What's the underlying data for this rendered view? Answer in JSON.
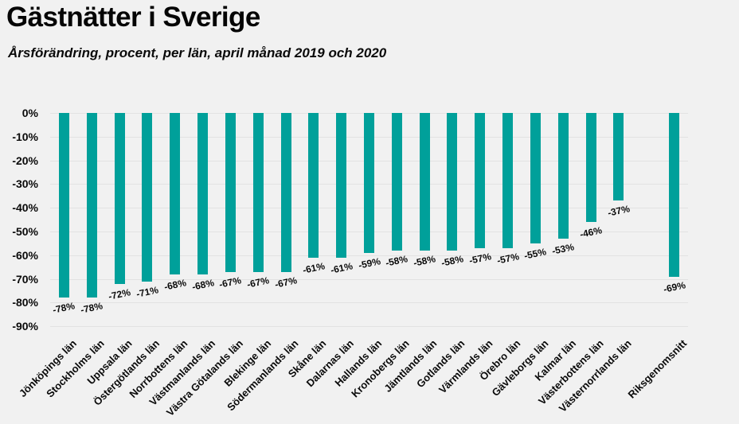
{
  "header": {
    "title": "Gästnätter i Sverige",
    "subtitle": "Årsförändring, procent, per län, april månad 2019 och 2020"
  },
  "chart_data": {
    "type": "bar",
    "title": "Gästnätter i Sverige",
    "subtitle": "Årsförändring, procent, per län, april månad 2019 och 2020",
    "unit": "percent",
    "categories": [
      "Jönköpings län",
      "Stockholms län",
      "Uppsala län",
      "Östergötlands län",
      "Norrbottens län",
      "Västmanlands län",
      "Västra Götalands län",
      "Blekinge län",
      "Södermanlands län",
      "Skåne län",
      "Dalarnas län",
      "Hallands län",
      "Kronobergs län",
      "Jämtlands län",
      "Gotlands län",
      "Värmlands län",
      "Örebro län",
      "Gävleborgs län",
      "Kalmar län",
      "Västerbottens län",
      "Västernorrlands län",
      "Riksgenomsnitt"
    ],
    "values": [
      -78,
      -78,
      -72,
      -71,
      -68,
      -68,
      -67,
      -67,
      -67,
      -61,
      -61,
      -59,
      -58,
      -58,
      -58,
      -57,
      -57,
      -55,
      -53,
      -46,
      -37,
      -69
    ],
    "value_labels": [
      "-78%",
      "-78%",
      "-72%",
      "-71%",
      "-68%",
      "-68%",
      "-67%",
      "-67%",
      "-67%",
      "-61%",
      "-61%",
      "-59%",
      "-58%",
      "-58%",
      "-58%",
      "-57%",
      "-57%",
      "-55%",
      "-53%",
      "-46%",
      "-37%",
      "-69%"
    ],
    "ylim": [
      -90,
      0
    ],
    "ytick_labels": [
      "0%",
      "-10%",
      "-20%",
      "-30%",
      "-40%",
      "-50%",
      "-60%",
      "-70%",
      "-80%",
      "-90%"
    ],
    "grid": "horizontal",
    "legend": "none",
    "gap_before_last_bar": true,
    "bar_color": "#00A09A",
    "background_color": "#F1F1F1",
    "gridline_color": "#E2E2E2",
    "text_color": "#0A0A0A"
  }
}
